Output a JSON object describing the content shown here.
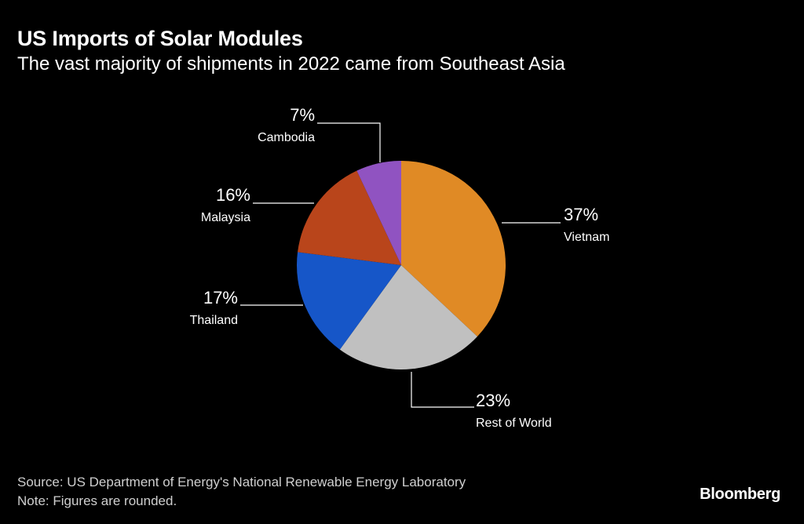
{
  "title": "US Imports of Solar Modules",
  "subtitle": "The vast majority of shipments in 2022 came from Southeast Asia",
  "source": "Source: US Department of Energy's National Renewable Energy Laboratory",
  "note": "Note: Figures are rounded.",
  "brand": "Bloomberg",
  "chart_data": {
    "type": "pie",
    "title": "US Imports of Solar Modules",
    "subtitle": "The vast majority of shipments in 2022 came from Southeast Asia",
    "slices": [
      {
        "label": "Vietnam",
        "value": 37,
        "value_label": "37%",
        "color": "#e08a25"
      },
      {
        "label": "Rest of World",
        "value": 23,
        "value_label": "23%",
        "color": "#c0c0c0"
      },
      {
        "label": "Thailand",
        "value": 17,
        "value_label": "17%",
        "color": "#1656c8"
      },
      {
        "label": "Malaysia",
        "value": 16,
        "value_label": "16%",
        "color": "#b9451b"
      },
      {
        "label": "Cambodia",
        "value": 7,
        "value_label": "7%",
        "color": "#9053c1"
      }
    ]
  }
}
